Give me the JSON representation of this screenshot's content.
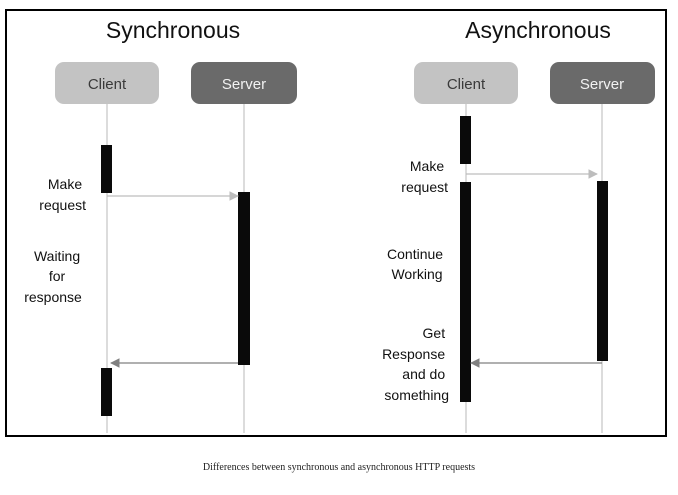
{
  "panels": {
    "sync": {
      "title": "Synchronous",
      "client_label": "Client",
      "server_label": "Server",
      "notes": {
        "make": [
          "Make",
          "request"
        ],
        "waiting": [
          "Waiting",
          "for",
          "response"
        ]
      }
    },
    "async": {
      "title": "Asynchronous",
      "client_label": "Client",
      "server_label": "Server",
      "notes": {
        "make": [
          "Make",
          "request"
        ],
        "continue": [
          "Continue",
          "Working"
        ],
        "get": [
          "Get",
          "Response",
          "and do",
          "something"
        ]
      }
    }
  },
  "caption": "Differences between synchronous and asynchronous HTTP requests",
  "colors": {
    "client_box": "#c3c3c3",
    "server_box": "#6a6a6a",
    "client_text": "#3a3a3a",
    "server_text": "#f2f2f2",
    "lifeline": "#b8b8b8",
    "activation": "#0a0a0a",
    "arrow_light": "#bdbdbd",
    "arrow_dark": "#808080"
  }
}
